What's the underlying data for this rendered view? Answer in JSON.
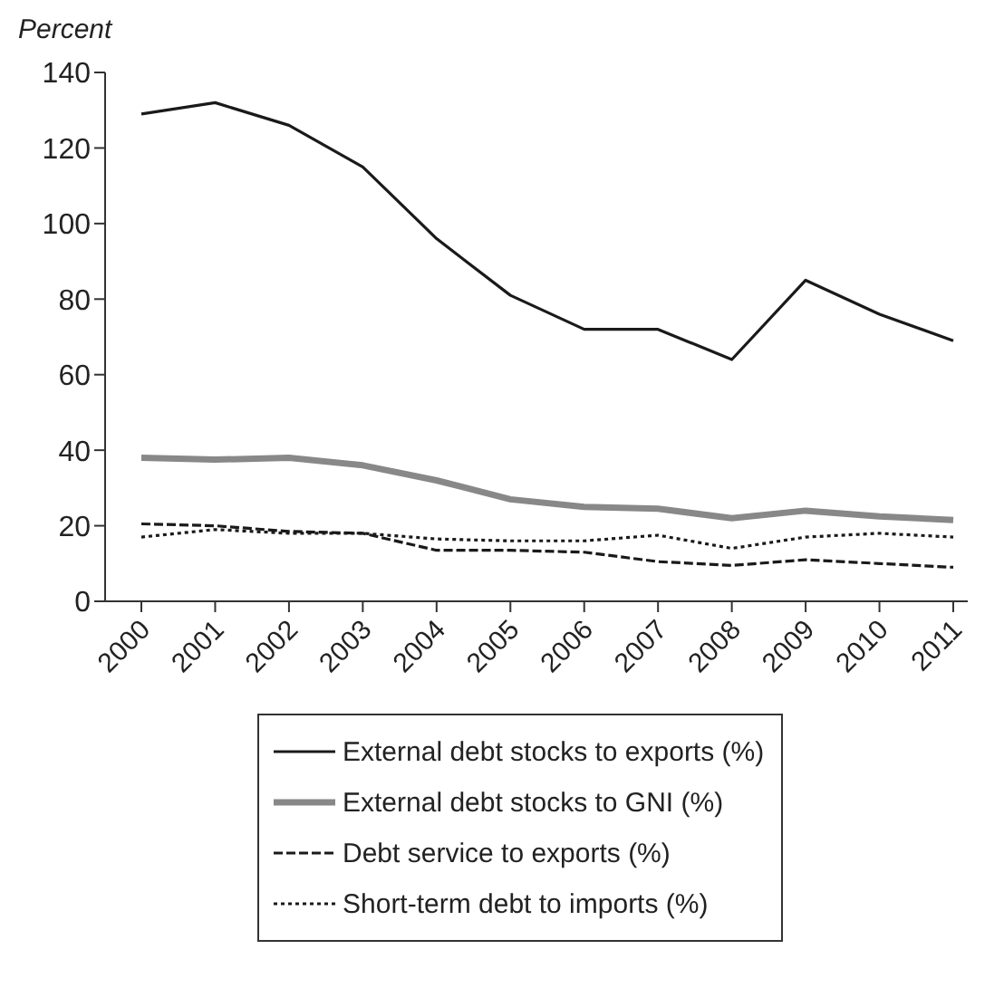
{
  "chart_data": {
    "type": "line",
    "ylabel": "Percent",
    "categories": [
      "2000",
      "2001",
      "2002",
      "2003",
      "2004",
      "2005",
      "2006",
      "2007",
      "2008",
      "2009",
      "2010",
      "2011"
    ],
    "series": [
      {
        "name": "External debt stocks to exports (%)",
        "color": "#1a1a1a",
        "line_style": "solid",
        "values": [
          129,
          132,
          126,
          115,
          96,
          81,
          72,
          72,
          64,
          85,
          76,
          69
        ]
      },
      {
        "name": "External debt stocks to GNI (%)",
        "color": "#888888",
        "line_style": "solid",
        "values": [
          38,
          37.5,
          38,
          36,
          32,
          27,
          25,
          24.5,
          22,
          24,
          22.5,
          21.5
        ]
      },
      {
        "name": "Debt service to exports (%)",
        "color": "#1a1a1a",
        "line_style": "dashed",
        "values": [
          20.5,
          20,
          18.5,
          18,
          13.5,
          13.5,
          13,
          10.5,
          9.5,
          11,
          10,
          9
        ]
      },
      {
        "name": "Short-term debt to imports (%)",
        "color": "#1a1a1a",
        "line_style": "dotted",
        "values": [
          17,
          19,
          18,
          18,
          16.5,
          16,
          16,
          17.5,
          14,
          17,
          18,
          17
        ]
      }
    ],
    "ylim": [
      0,
      140
    ],
    "yticks": [
      0,
      20,
      40,
      60,
      80,
      100,
      120,
      140
    ],
    "legend": "bottom",
    "marker": "none"
  }
}
